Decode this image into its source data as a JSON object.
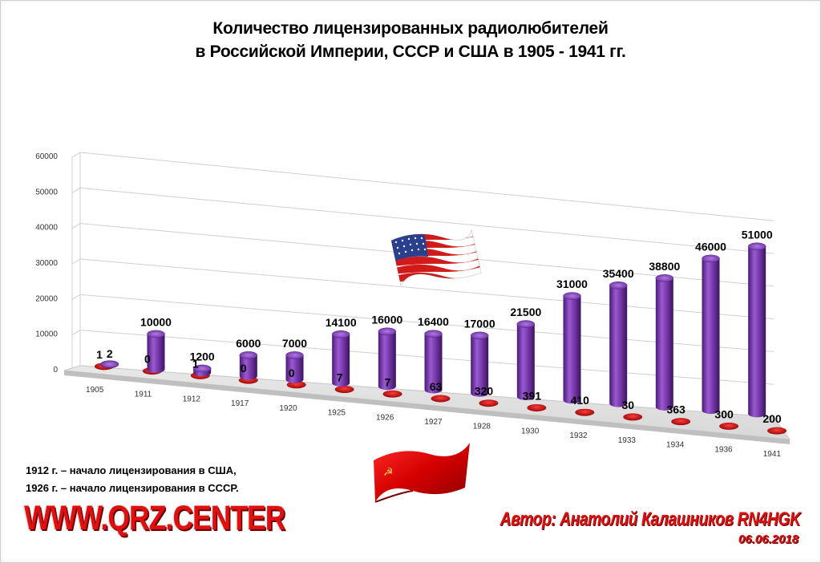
{
  "title_line1": "Количество лицензированных радиолюбителей",
  "title_line2": "в Российской Империи, СССР и США в 1905 - 1941 гг.",
  "note_line1": "1912 г. – начало лицензирования в США,",
  "note_line2": "1926 г. – начало лицензирования в СССР.",
  "site": "WWW.QRZ.CENTER",
  "author": "Автор: Анатолий Калашников RN4HGK",
  "date": "06.06.2018",
  "colors": {
    "usa": "#7a3bb0",
    "ussr": "#cc0000",
    "site": "#e01010"
  },
  "icons": [
    "usa-flag-icon",
    "ussr-flag-icon"
  ],
  "chart_data": {
    "type": "bar",
    "title": "Количество лицензированных радиолюбителей в Российской Империи, СССР и США в 1905 - 1941 гг.",
    "categories": [
      "1905",
      "1911",
      "1912",
      "1917",
      "1920",
      "1925",
      "1926",
      "1927",
      "1928",
      "1930",
      "1932",
      "1933",
      "1934",
      "1936",
      "1941"
    ],
    "series": [
      {
        "values": [
          2,
          10000,
          1200,
          6000,
          7000,
          14100,
          16000,
          16400,
          17000,
          21500,
          31000,
          35400,
          38800,
          46000,
          51000
        ]
      },
      {
        "values": [
          1,
          0,
          1,
          0,
          0,
          7,
          7,
          63,
          320,
          391,
          410,
          30,
          363,
          300,
          200
        ]
      }
    ],
    "yticks": [
      "0",
      "10000",
      "20000",
      "30000",
      "40000",
      "50000",
      "60000"
    ],
    "ylim": [
      0,
      60000
    ],
    "grid": true
  }
}
